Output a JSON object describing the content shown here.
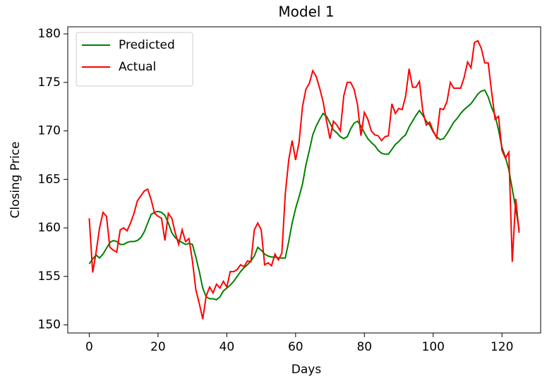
{
  "chart_data": {
    "type": "line",
    "title": "Model 1",
    "x_label": "Days",
    "y_label": "Closing Price",
    "x": [
      0,
      1,
      2,
      3,
      4,
      5,
      6,
      7,
      8,
      9,
      10,
      11,
      12,
      13,
      14,
      15,
      16,
      17,
      18,
      19,
      20,
      21,
      22,
      23,
      24,
      25,
      26,
      27,
      28,
      29,
      30,
      31,
      32,
      33,
      34,
      35,
      36,
      37,
      38,
      39,
      40,
      41,
      42,
      43,
      44,
      45,
      46,
      47,
      48,
      49,
      50,
      51,
      52,
      53,
      54,
      55,
      56,
      57,
      58,
      59,
      60,
      61,
      62,
      63,
      64,
      65,
      66,
      67,
      68,
      69,
      70,
      71,
      72,
      73,
      74,
      75,
      76,
      77,
      78,
      79,
      80,
      81,
      82,
      83,
      84,
      85,
      86,
      87,
      88,
      89,
      90,
      91,
      92,
      93,
      94,
      95,
      96,
      97,
      98,
      99,
      100,
      101,
      102,
      103,
      104,
      105,
      106,
      107,
      108,
      109,
      110,
      111,
      112,
      113,
      114,
      115,
      116,
      117,
      118,
      119,
      120,
      121,
      122,
      123,
      124,
      125
    ],
    "series": [
      {
        "name": "Predicted",
        "color": "#008000",
        "values": [
          156.3,
          156.8,
          157.2,
          156.9,
          157.3,
          157.9,
          158.5,
          158.7,
          158.6,
          158.3,
          158.3,
          158.5,
          158.6,
          158.6,
          158.7,
          159.0,
          159.6,
          160.5,
          161.4,
          161.6,
          161.7,
          161.6,
          161.3,
          160.5,
          159.5,
          159.0,
          158.7,
          158.5,
          158.3,
          158.4,
          158.3,
          157.0,
          155.5,
          153.8,
          152.9,
          152.7,
          152.7,
          152.6,
          152.9,
          153.5,
          153.8,
          154.1,
          154.5,
          155.0,
          155.5,
          155.9,
          156.2,
          156.6,
          157.1,
          158.0,
          157.7,
          157.3,
          157.1,
          157.0,
          157.0,
          156.9,
          156.9,
          156.9,
          158.6,
          160.5,
          162.0,
          163.2,
          164.5,
          166.5,
          168.0,
          169.6,
          170.5,
          171.2,
          171.8,
          171.5,
          170.8,
          170.1,
          169.8,
          169.4,
          169.2,
          169.4,
          170.2,
          170.8,
          171.0,
          170.5,
          169.8,
          169.2,
          168.8,
          168.5,
          168.0,
          167.7,
          167.6,
          167.6,
          168.1,
          168.6,
          168.9,
          169.3,
          169.6,
          170.4,
          171.0,
          171.6,
          172.1,
          171.6,
          171.0,
          170.6,
          169.9,
          169.4,
          169.1,
          169.2,
          169.7,
          170.3,
          170.9,
          171.3,
          171.8,
          172.2,
          172.5,
          172.8,
          173.3,
          173.8,
          174.1,
          174.2,
          173.5,
          172.4,
          171.6,
          170.1,
          168.3,
          167.3,
          166.0,
          164.0,
          162.0,
          159.8
        ]
      },
      {
        "name": "Actual",
        "color": "#ff0000",
        "values": [
          161.0,
          155.4,
          157.5,
          160.0,
          161.6,
          161.2,
          158.0,
          157.7,
          157.5,
          159.8,
          160.0,
          159.7,
          160.5,
          161.5,
          162.8,
          163.3,
          163.8,
          164.0,
          162.9,
          161.5,
          161.2,
          161.0,
          158.7,
          161.5,
          161.0,
          159.5,
          158.3,
          159.8,
          158.6,
          158.9,
          156.6,
          153.6,
          152.2,
          150.6,
          153.0,
          153.9,
          153.3,
          154.2,
          153.8,
          154.5,
          153.9,
          155.5,
          155.5,
          155.7,
          156.2,
          156.0,
          156.6,
          156.5,
          159.8,
          160.5,
          159.8,
          156.2,
          156.4,
          156.1,
          157.3,
          156.7,
          157.4,
          163.5,
          167.0,
          169.0,
          167.0,
          168.8,
          172.5,
          174.3,
          174.9,
          176.2,
          175.6,
          174.4,
          173.0,
          171.0,
          169.2,
          171.0,
          170.6,
          170.0,
          173.6,
          175.0,
          175.0,
          174.3,
          172.7,
          169.5,
          171.9,
          171.2,
          170.0,
          169.6,
          169.5,
          169.0,
          169.4,
          169.5,
          172.8,
          171.8,
          172.3,
          172.2,
          173.6,
          176.4,
          174.5,
          174.5,
          175.1,
          172.0,
          170.6,
          170.9,
          170.0,
          169.3,
          172.3,
          172.2,
          173.0,
          175.0,
          174.4,
          174.4,
          174.4,
          175.5,
          177.1,
          176.5,
          179.1,
          179.3,
          178.5,
          177.0,
          177.0,
          174.0,
          171.2,
          171.5,
          168.0,
          167.2,
          167.8,
          156.5,
          163.0,
          159.5
        ]
      }
    ],
    "xlim": [
      -6.25,
      131.25
    ],
    "ylim": [
      149.17,
      180.73
    ],
    "xticks": [
      0,
      20,
      40,
      60,
      80,
      100,
      120
    ],
    "yticks": [
      150,
      155,
      160,
      165,
      170,
      175,
      180
    ],
    "legend": "upper left",
    "grid": false
  }
}
